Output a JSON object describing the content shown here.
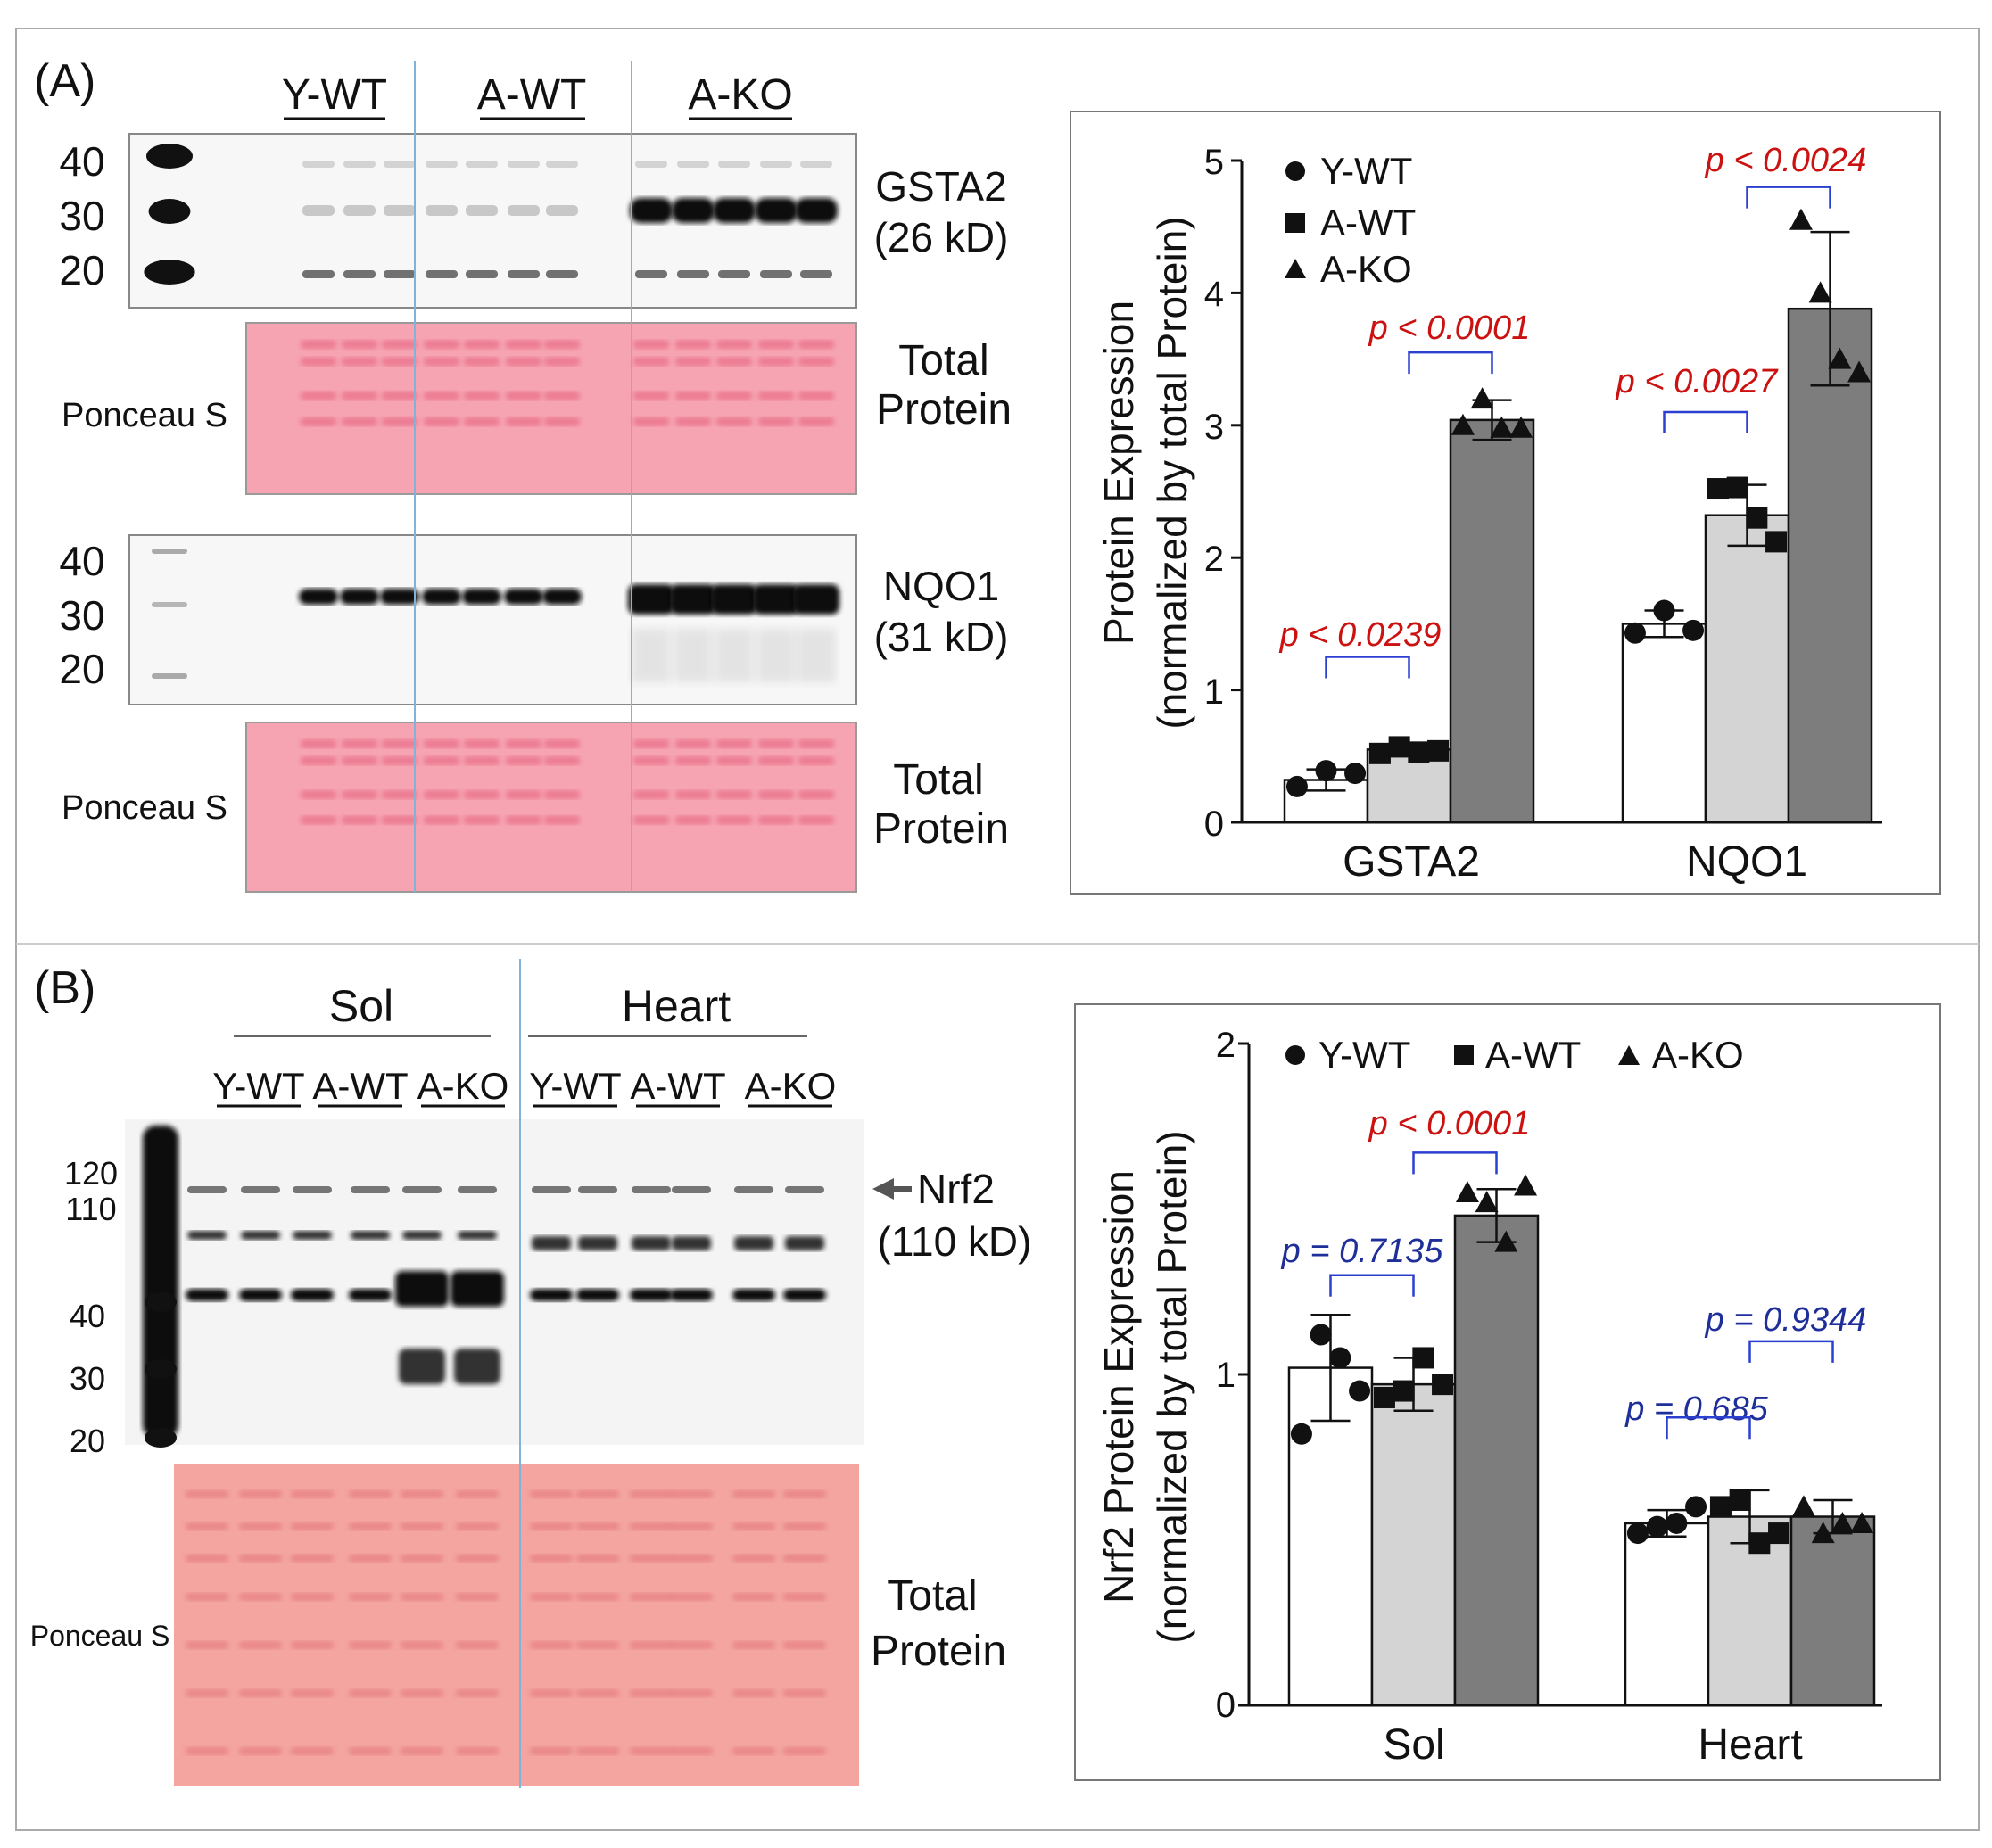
{
  "colors": {
    "blot_bg": "#f7f7f7",
    "band": "#111111",
    "ponceau_bg": "#f6a4b2",
    "ponceau_band": "#e86a84",
    "lane_divider": "#7fb3dc",
    "bracket": "#2b3fd0",
    "sig_text": "#cc1111",
    "ns_text": "#1f2f9a",
    "bar_ywt": "#ffffff",
    "bar_awt": "#d4d4d4",
    "bar_ako": "#7d7d7d"
  },
  "panel_a": {
    "label": "(A)",
    "groups": [
      "Y-WT",
      "A-WT",
      "A-KO"
    ],
    "blot1": {
      "markers": [
        "40",
        "30",
        "20"
      ],
      "name": "GSTA2",
      "size": "(26 kD)"
    },
    "ponceau1": {
      "name": "Ponceau S",
      "line1": "Total",
      "line2": "Protein"
    },
    "blot2": {
      "markers": [
        "40",
        "30",
        "20"
      ],
      "name": "NQO1",
      "size": "(31 kD)"
    },
    "ponceau2": {
      "name": "Ponceau S",
      "line1": "Total",
      "line2": "Protein"
    }
  },
  "panel_b": {
    "label": "(B)",
    "tissues": [
      "Sol",
      "Heart"
    ],
    "lane_groups": [
      "Y-WT",
      "A-WT",
      "A-KO",
      "Y-WT",
      "A-WT",
      "A-KO"
    ],
    "markers": [
      "120",
      "110",
      "40",
      "30",
      "20"
    ],
    "arrow_label": "Nrf2",
    "size": "(110 kD)",
    "ponceau": {
      "name": "Ponceau S",
      "line1": "Total",
      "line2": "Protein"
    }
  },
  "chart_data": [
    {
      "type": "bar",
      "title": "",
      "ylabel_line1": "Protein Expression",
      "ylabel_line2": "(normalized by total Protein)",
      "xlabel": "",
      "ylim": [
        0,
        5
      ],
      "yticks": [
        "0",
        "1",
        "2",
        "3",
        "4",
        "5"
      ],
      "categories": [
        "GSTA2",
        "NQO1"
      ],
      "legend": [
        "Y-WT",
        "A-WT",
        "A-KO"
      ],
      "legend_position": "top-left",
      "series": [
        {
          "name": "Y-WT",
          "marker": "circle",
          "values": [
            0.32,
            1.5
          ],
          "sd": [
            0.08,
            0.1
          ],
          "points": [
            [
              0.27,
              0.39,
              0.37
            ],
            [
              1.43,
              1.6,
              1.45
            ]
          ]
        },
        {
          "name": "A-WT",
          "marker": "square",
          "values": [
            0.55,
            2.32
          ],
          "sd": [
            0.04,
            0.23
          ],
          "points": [
            [
              0.52,
              0.57,
              0.53,
              0.54
            ],
            [
              2.52,
              2.53,
              2.3,
              2.12
            ]
          ]
        },
        {
          "name": "A-KO",
          "marker": "triangle",
          "values": [
            3.04,
            3.88
          ],
          "sd": [
            0.15,
            0.58
          ],
          "points": [
            [
              3.0,
              3.2,
              2.98,
              2.98
            ],
            [
              4.55,
              4.0,
              3.5,
              3.4
            ]
          ]
        }
      ],
      "comparisons": [
        {
          "category": "GSTA2",
          "from": "Y-WT",
          "to": "A-WT",
          "text": "p < 0.0239",
          "style": "sig",
          "y": 1.25
        },
        {
          "category": "GSTA2",
          "from": "A-WT",
          "to": "A-KO",
          "text": "p < 0.0001",
          "style": "sig",
          "y": 3.55
        },
        {
          "category": "NQO1",
          "from": "Y-WT",
          "to": "A-WT",
          "text": "p < 0.0027",
          "style": "sig",
          "y": 3.1
        },
        {
          "category": "NQO1",
          "from": "A-WT",
          "to": "A-KO",
          "text": "p < 0.0024",
          "style": "sig",
          "y": 4.8
        }
      ]
    },
    {
      "type": "bar",
      "title": "",
      "ylabel_line1": "Nrf2 Protein Expression",
      "ylabel_line2": "(normalized by total Protein)",
      "xlabel": "",
      "ylim": [
        0,
        2
      ],
      "yticks": [
        "0",
        "1",
        "2"
      ],
      "categories": [
        "Sol",
        "Heart"
      ],
      "legend": [
        "Y-WT",
        "A-WT",
        "A-KO"
      ],
      "legend_position": "top",
      "series": [
        {
          "name": "Y-WT",
          "marker": "circle",
          "values": [
            1.02,
            0.55
          ],
          "sd": [
            0.16,
            0.04
          ],
          "points": [
            [
              0.82,
              1.12,
              1.05,
              0.95
            ],
            [
              0.52,
              0.54,
              0.55,
              0.6
            ]
          ]
        },
        {
          "name": "A-WT",
          "marker": "square",
          "values": [
            0.97,
            0.57
          ],
          "sd": [
            0.08,
            0.08
          ],
          "points": [
            [
              0.93,
              0.95,
              1.05,
              0.97
            ],
            [
              0.6,
              0.62,
              0.49,
              0.52
            ]
          ]
        },
        {
          "name": "A-KO",
          "marker": "triangle",
          "values": [
            1.48,
            0.57
          ],
          "sd": [
            0.08,
            0.05
          ],
          "points": [
            [
              1.55,
              1.52,
              1.4,
              1.57
            ],
            [
              0.6,
              0.52,
              0.55,
              0.55
            ]
          ]
        }
      ],
      "comparisons": [
        {
          "category": "Sol",
          "from": "Y-WT",
          "to": "A-WT",
          "text": "p = 0.7135",
          "style": "ns",
          "y": 1.3
        },
        {
          "category": "Sol",
          "from": "A-WT",
          "to": "A-KO",
          "text": "p < 0.0001",
          "style": "sig",
          "y": 1.67
        },
        {
          "category": "Heart",
          "from": "Y-WT",
          "to": "A-WT",
          "text": "p = 0.685",
          "style": "ns",
          "y": 0.87
        },
        {
          "category": "Heart",
          "from": "A-WT",
          "to": "A-KO",
          "text": "p = 0.9344",
          "style": "ns",
          "y": 1.1
        }
      ]
    }
  ]
}
